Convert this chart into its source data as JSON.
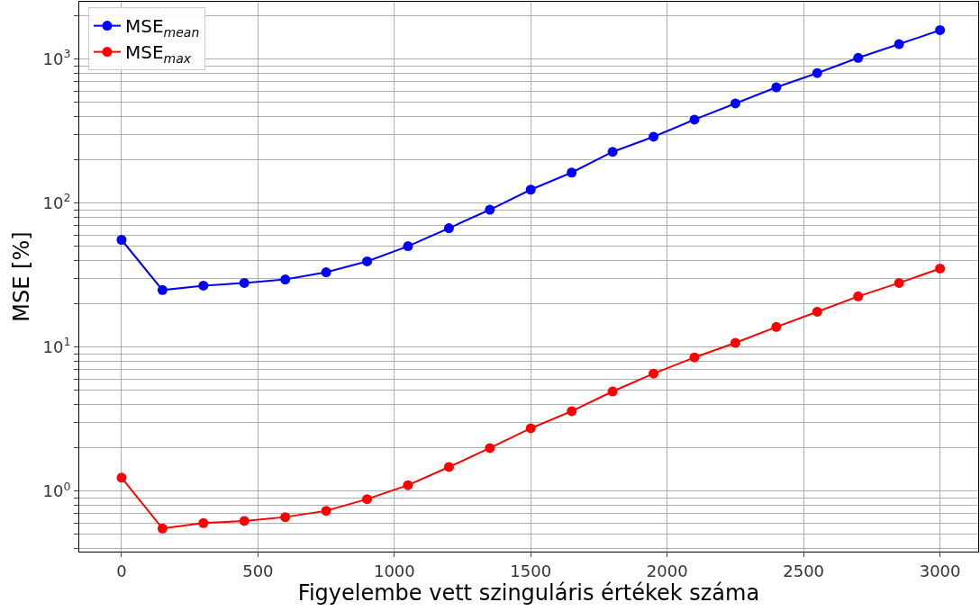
{
  "chart_data": {
    "type": "line",
    "xlabel": "Figyelembe vett szinguláris értékek száma",
    "ylabel": "MSE [%]",
    "x": [
      0,
      150,
      300,
      450,
      600,
      750,
      900,
      1050,
      1200,
      1350,
      1500,
      1650,
      1800,
      1950,
      2100,
      2250,
      2400,
      2550,
      2700,
      2850,
      3000
    ],
    "series": [
      {
        "name": "MSE$_{mean}$",
        "color": "#0000ff",
        "values": [
          55.6,
          24.9,
          26.7,
          27.9,
          29.5,
          33.1,
          39.4,
          50.2,
          67,
          90,
          124,
          163,
          227,
          289,
          380,
          492,
          637,
          800,
          1020,
          1270,
          1590
        ]
      },
      {
        "name": "MSE$_{max}$",
        "color": "#ff0000",
        "values": [
          1.24,
          0.55,
          0.6,
          0.62,
          0.66,
          0.73,
          0.88,
          1.1,
          1.47,
          1.99,
          2.73,
          3.59,
          4.92,
          6.55,
          8.48,
          10.7,
          13.8,
          17.6,
          22.5,
          27.9,
          35.1
        ]
      }
    ],
    "log": "y",
    "marker": "circle",
    "line_style": "solid",
    "grid": true,
    "legend": "top left",
    "xlim": [
      -155,
      3140
    ],
    "xticks": [
      0,
      500,
      1000,
      1500,
      2000,
      2500,
      3000
    ],
    "ylim": [
      0.38,
      2500
    ],
    "yticks": [
      {
        "value": 0.4,
        "label": null
      },
      {
        "value": 0.5,
        "label": null
      },
      {
        "value": 0.6,
        "label": null
      },
      {
        "value": 0.7,
        "label": null
      },
      {
        "value": 0.8,
        "label": null
      },
      {
        "value": 0.9,
        "label": null
      },
      {
        "value": 1,
        "label": "10$^{0}$"
      },
      {
        "value": 2,
        "label": null
      },
      {
        "value": 3,
        "label": null
      },
      {
        "value": 4,
        "label": null
      },
      {
        "value": 5,
        "label": null
      },
      {
        "value": 6,
        "label": null
      },
      {
        "value": 7,
        "label": null
      },
      {
        "value": 8,
        "label": null
      },
      {
        "value": 9,
        "label": null
      },
      {
        "value": 10,
        "label": "10$^{1}$"
      },
      {
        "value": 20,
        "label": null
      },
      {
        "value": 30,
        "label": null
      },
      {
        "value": 40,
        "label": null
      },
      {
        "value": 50,
        "label": null
      },
      {
        "value": 60,
        "label": null
      },
      {
        "value": 70,
        "label": null
      },
      {
        "value": 80,
        "label": null
      },
      {
        "value": 90,
        "label": null
      },
      {
        "value": 100,
        "label": "10$^{2}$"
      },
      {
        "value": 200,
        "label": null
      },
      {
        "value": 300,
        "label": null
      },
      {
        "value": 400,
        "label": null
      },
      {
        "value": 500,
        "label": null
      },
      {
        "value": 600,
        "label": null
      },
      {
        "value": 700,
        "label": null
      },
      {
        "value": 800,
        "label": null
      },
      {
        "value": 900,
        "label": null
      },
      {
        "value": 1000,
        "label": "10$^{3}$"
      },
      {
        "value": 2000,
        "label": null
      }
    ]
  }
}
